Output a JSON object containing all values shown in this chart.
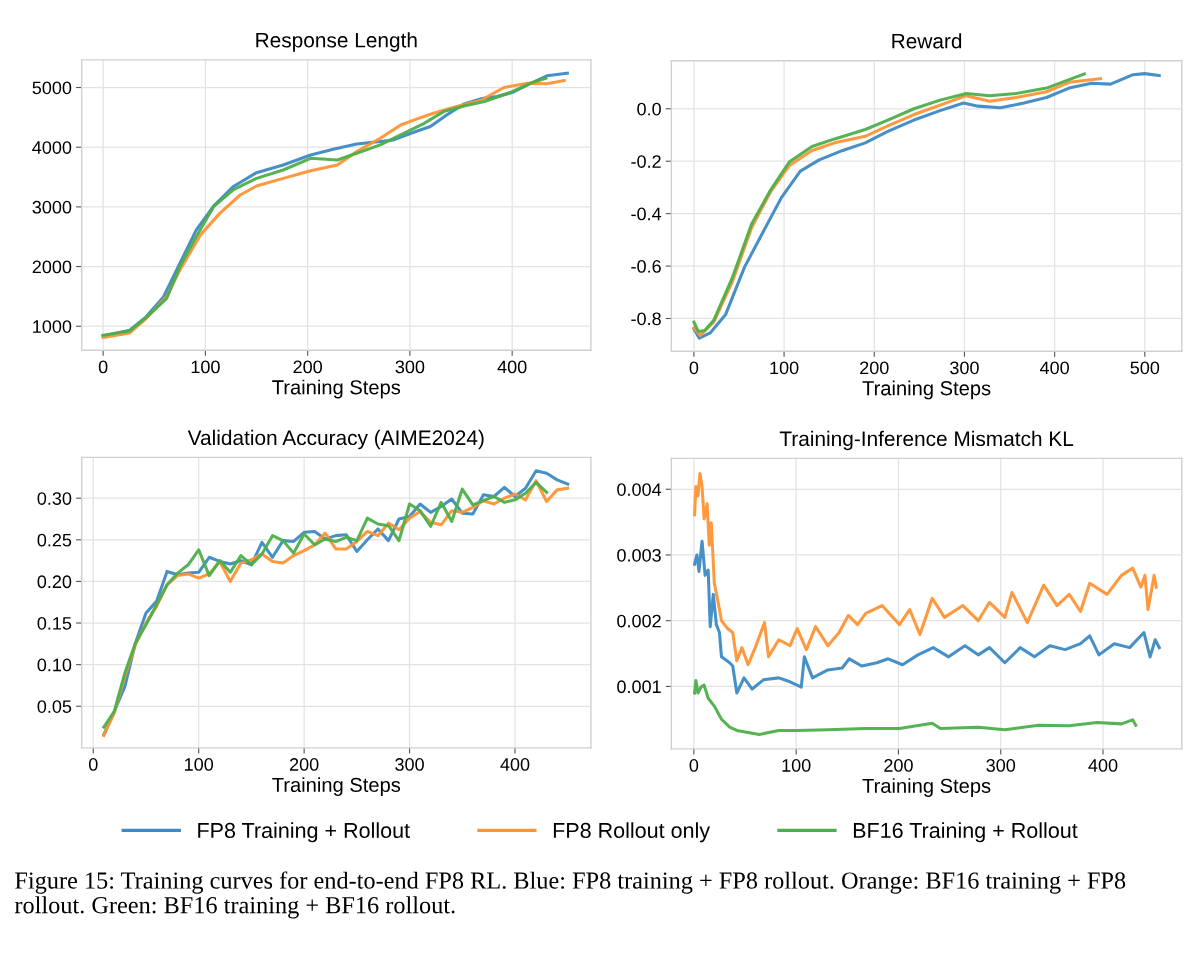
{
  "chart_data": [
    {
      "type": "line",
      "title": "Response Length",
      "xlabel": "Training Steps",
      "xlim": [
        -21,
        477
      ],
      "ylim": [
        597,
        5464
      ],
      "xticks": [
        0,
        100,
        200,
        300,
        400
      ],
      "yticks": [
        1000,
        2000,
        3000,
        4000,
        5000
      ],
      "grid": true,
      "legend": "bottom",
      "line_style": "solid",
      "series": [
        {
          "name": "FP8 Training + Rollout",
          "color": "#3d8ac4",
          "x": [
            0,
            26,
            42,
            59,
            75,
            91,
            108,
            127,
            150,
            176,
            203,
            225,
            248,
            271,
            284,
            301,
            320,
            336,
            353,
            369,
            385,
            400,
            415,
            434,
            454
          ],
          "values": [
            838,
            933,
            1157,
            1492,
            2052,
            2611,
            3014,
            3338,
            3573,
            3702,
            3870,
            3965,
            4055,
            4094,
            4122,
            4234,
            4346,
            4541,
            4726,
            4810,
            4849,
            4916,
            5045,
            5196,
            5240
          ]
        },
        {
          "name": "FP8 Rollout only",
          "color": "#ff9436",
          "x": [
            0,
            26,
            42,
            62,
            75,
            95,
            114,
            134,
            150,
            176,
            203,
            229,
            248,
            271,
            291,
            307,
            323,
            343,
            369,
            392,
            415,
            434,
            451
          ],
          "values": [
            810,
            888,
            1129,
            1492,
            1940,
            2527,
            2891,
            3199,
            3350,
            3478,
            3607,
            3702,
            3926,
            4150,
            4373,
            4474,
            4569,
            4670,
            4782,
            5000,
            5073,
            5062,
            5118
          ]
        },
        {
          "name": "BF16 Training + Rollout",
          "color": "#4daf4a",
          "x": [
            0,
            26,
            42,
            62,
            75,
            91,
            108,
            127,
            150,
            176,
            203,
            229,
            248,
            271,
            291,
            314,
            333,
            353,
            373,
            398,
            418,
            433
          ],
          "values": [
            849,
            922,
            1145,
            1464,
            1996,
            2499,
            3003,
            3283,
            3478,
            3618,
            3814,
            3786,
            3898,
            4038,
            4206,
            4401,
            4597,
            4692,
            4765,
            4916,
            5073,
            5157
          ]
        }
      ]
    },
    {
      "type": "line",
      "title": "Reward",
      "xlabel": "Training Steps",
      "xlim": [
        -25,
        541
      ],
      "ylim": [
        -0.925,
        0.183
      ],
      "xticks": [
        0,
        100,
        200,
        300,
        400,
        500
      ],
      "yticks": [
        -0.8,
        -0.6,
        -0.4,
        -0.2,
        {
          "value": 0.0,
          "label": "0.0"
        }
      ],
      "grid": true,
      "line_style": "solid",
      "series": [
        {
          "color": "#3d8ac4",
          "x": [
            0,
            6,
            18,
            35,
            56,
            77,
            97,
            118,
            139,
            165,
            190,
            215,
            244,
            273,
            299,
            315,
            340,
            366,
            391,
            416,
            441,
            462,
            487,
            500,
            516
          ],
          "values": [
            -0.84,
            -0.875,
            -0.855,
            -0.786,
            -0.605,
            -0.468,
            -0.339,
            -0.238,
            -0.195,
            -0.159,
            -0.13,
            -0.086,
            -0.043,
            -0.007,
            0.022,
            0.01,
            0.004,
            0.022,
            0.043,
            0.079,
            0.097,
            0.094,
            0.13,
            0.134,
            0.127
          ]
        },
        {
          "color": "#ff9436",
          "x": [
            0,
            7,
            22,
            43,
            64,
            85,
            106,
            131,
            156,
            190,
            215,
            244,
            273,
            302,
            328,
            357,
            391,
            416,
            451
          ],
          "values": [
            -0.836,
            -0.865,
            -0.814,
            -0.656,
            -0.454,
            -0.317,
            -0.216,
            -0.159,
            -0.13,
            -0.105,
            -0.065,
            -0.022,
            0.014,
            0.05,
            0.029,
            0.043,
            0.065,
            0.101,
            0.115
          ]
        },
        {
          "color": "#4daf4a",
          "x": [
            0,
            5,
            12,
            22,
            43,
            64,
            85,
            106,
            131,
            156,
            190,
            215,
            244,
            273,
            302,
            328,
            357,
            391,
            416,
            433
          ],
          "values": [
            -0.814,
            -0.85,
            -0.846,
            -0.807,
            -0.641,
            -0.44,
            -0.31,
            -0.202,
            -0.144,
            -0.115,
            -0.079,
            -0.043,
            0.0,
            0.033,
            0.058,
            0.05,
            0.058,
            0.079,
            0.111,
            0.133
          ]
        }
      ]
    },
    {
      "type": "line",
      "title": "Validation Accuracy (AIME2024)",
      "xlabel": "Training Steps",
      "xlim": [
        -11,
        472
      ],
      "ylim": [
        0.0,
        0.349
      ],
      "xticks": [
        0,
        100,
        200,
        300,
        400
      ],
      "yticks": [
        {
          "value": 0.05,
          "label": "0.05"
        },
        {
          "value": 0.1,
          "label": "0.10"
        },
        {
          "value": 0.15,
          "label": "0.15"
        },
        {
          "value": 0.2,
          "label": "0.20"
        },
        {
          "value": 0.25,
          "label": "0.25"
        },
        {
          "value": 0.3,
          "label": "0.30"
        }
      ],
      "grid": true,
      "line_style": "solid",
      "series": [
        {
          "color": "#3d8ac4",
          "x": [
            10,
            20,
            30,
            40,
            50,
            60,
            70,
            80,
            90,
            100,
            110,
            120,
            130,
            140,
            150,
            160,
            170,
            180,
            190,
            200,
            210,
            220,
            230,
            240,
            250,
            260,
            270,
            280,
            290,
            300,
            310,
            320,
            330,
            340,
            350,
            360,
            370,
            380,
            390,
            400,
            410,
            420,
            430,
            440,
            450
          ],
          "values": [
            0.016,
            0.044,
            0.074,
            0.126,
            0.162,
            0.176,
            0.212,
            0.208,
            0.21,
            0.211,
            0.229,
            0.224,
            0.221,
            0.225,
            0.22,
            0.247,
            0.229,
            0.249,
            0.248,
            0.259,
            0.26,
            0.251,
            0.255,
            0.256,
            0.236,
            0.25,
            0.263,
            0.249,
            0.275,
            0.278,
            0.293,
            0.283,
            0.29,
            0.299,
            0.282,
            0.281,
            0.304,
            0.302,
            0.313,
            0.302,
            0.312,
            0.333,
            0.33,
            0.322,
            0.317
          ]
        },
        {
          "color": "#ff9436",
          "x": [
            10,
            20,
            30,
            40,
            50,
            60,
            70,
            80,
            90,
            100,
            110,
            120,
            130,
            140,
            150,
            160,
            170,
            180,
            190,
            200,
            210,
            220,
            230,
            240,
            250,
            260,
            270,
            280,
            290,
            300,
            310,
            320,
            330,
            340,
            350,
            360,
            370,
            380,
            390,
            400,
            410,
            420,
            430,
            440,
            450
          ],
          "values": [
            0.015,
            0.042,
            0.086,
            0.124,
            0.15,
            0.17,
            0.196,
            0.207,
            0.209,
            0.204,
            0.209,
            0.224,
            0.2,
            0.222,
            0.226,
            0.233,
            0.224,
            0.222,
            0.231,
            0.237,
            0.244,
            0.258,
            0.239,
            0.239,
            0.248,
            0.26,
            0.255,
            0.27,
            0.262,
            0.276,
            0.284,
            0.271,
            0.268,
            0.285,
            0.283,
            0.289,
            0.297,
            0.293,
            0.3,
            0.305,
            0.298,
            0.321,
            0.296,
            0.31,
            0.312
          ]
        },
        {
          "color": "#4daf4a",
          "x": [
            10,
            20,
            30,
            40,
            50,
            60,
            70,
            80,
            90,
            100,
            110,
            120,
            130,
            140,
            150,
            160,
            170,
            180,
            190,
            200,
            210,
            220,
            230,
            240,
            250,
            260,
            270,
            280,
            290,
            300,
            310,
            320,
            330,
            340,
            350,
            360,
            370,
            380,
            390,
            400,
            410,
            420,
            430
          ],
          "values": [
            0.025,
            0.044,
            0.09,
            0.126,
            0.148,
            0.172,
            0.196,
            0.21,
            0.22,
            0.238,
            0.207,
            0.225,
            0.211,
            0.231,
            0.22,
            0.233,
            0.255,
            0.249,
            0.234,
            0.257,
            0.244,
            0.251,
            0.248,
            0.253,
            0.249,
            0.276,
            0.269,
            0.267,
            0.249,
            0.293,
            0.285,
            0.266,
            0.295,
            0.272,
            0.311,
            0.292,
            0.297,
            0.302,
            0.295,
            0.298,
            0.306,
            0.319,
            0.307
          ]
        }
      ]
    },
    {
      "type": "line",
      "title": "Training-Inference Mismatch KL",
      "xlabel": "Training Steps",
      "xlim": [
        -22,
        477
      ],
      "ylim": [
        5e-05,
        0.00447
      ],
      "xticks": [
        0,
        100,
        200,
        300,
        400
      ],
      "yticks": [
        0.001,
        0.002,
        0.003,
        0.004
      ],
      "grid": true,
      "line_style": "solid",
      "annotations": [
        "Figure 15: Training curves for end-to-end FP8 RL. Blue: FP8 training + FP8 rollout. Orange: BF16 training + FP8 rollout. Green: BF16 training + BF16 rollout."
      ],
      "series": [
        {
          "color": "#3d8ac4",
          "x": [
            0.7,
            3,
            5,
            8,
            11,
            14,
            16,
            19,
            22,
            25,
            27,
            35,
            38,
            42,
            49,
            57,
            68,
            83,
            94,
            105,
            108,
            116,
            131,
            145,
            152,
            164,
            179,
            190,
            204,
            219,
            234,
            249,
            265,
            278,
            289,
            304,
            319,
            333,
            348,
            363,
            378,
            387,
            396,
            411,
            426,
            440,
            446,
            451,
            455
          ],
          "values": [
            0.00286,
            0.003,
            0.00275,
            0.00321,
            0.00269,
            0.00277,
            0.00191,
            0.0024,
            0.00194,
            0.00182,
            0.00145,
            0.00136,
            0.00131,
            0.0009,
            0.00113,
            0.00096,
            0.0011,
            0.00113,
            0.00107,
            0.00099,
            0.00145,
            0.00113,
            0.00125,
            0.00128,
            0.00142,
            0.00131,
            0.00136,
            0.00142,
            0.00133,
            0.00148,
            0.00159,
            0.00145,
            0.00162,
            0.00148,
            0.00159,
            0.00136,
            0.00159,
            0.00145,
            0.00162,
            0.00156,
            0.00165,
            0.00177,
            0.00148,
            0.00165,
            0.00159,
            0.00182,
            0.00145,
            0.00171,
            0.00159
          ]
        },
        {
          "color": "#ff9436",
          "x": [
            0.7,
            2,
            4,
            6,
            8,
            10,
            13,
            15,
            17,
            20,
            23,
            27,
            33,
            38,
            42,
            47,
            53,
            60,
            69,
            73,
            83,
            94,
            101,
            110,
            119,
            131,
            142,
            151,
            160,
            168,
            184,
            201,
            211,
            221,
            233,
            245,
            263,
            278,
            289,
            304,
            311,
            326,
            342,
            355,
            367,
            378,
            387,
            404,
            418,
            429,
            437,
            441,
            444,
            450,
            452
          ],
          "values": [
            0.00361,
            0.00404,
            0.0039,
            0.00424,
            0.00404,
            0.00355,
            0.00378,
            0.00315,
            0.00349,
            0.00257,
            0.00234,
            0.002,
            0.00188,
            0.00182,
            0.00139,
            0.00159,
            0.00133,
            0.00159,
            0.00197,
            0.00145,
            0.00171,
            0.00162,
            0.00188,
            0.00156,
            0.00191,
            0.00162,
            0.00182,
            0.00208,
            0.00194,
            0.00211,
            0.00223,
            0.00194,
            0.00217,
            0.00179,
            0.00234,
            0.00205,
            0.00223,
            0.002,
            0.00228,
            0.00205,
            0.00243,
            0.00197,
            0.00254,
            0.00223,
            0.0024,
            0.00214,
            0.00257,
            0.0024,
            0.00269,
            0.0028,
            0.00251,
            0.00269,
            0.00217,
            0.00269,
            0.00251
          ]
        },
        {
          "color": "#4daf4a",
          "x": [
            0.7,
            2,
            4,
            7,
            10,
            14,
            20,
            27,
            35,
            42,
            53,
            64,
            83,
            101,
            131,
            168,
            201,
            233,
            241,
            278,
            304,
            337,
            367,
            394,
            418,
            429,
            432
          ],
          "values": [
            0.0009,
            0.00109,
            0.0009,
            0.00099,
            0.00102,
            0.00082,
            0.0007,
            0.0005,
            0.00038,
            0.00033,
            0.0003,
            0.00027,
            0.00033,
            0.00033,
            0.00034,
            0.00036,
            0.00036,
            0.00044,
            0.00036,
            0.00038,
            0.00034,
            0.00041,
            0.0004,
            0.00045,
            0.00043,
            0.00049,
            0.00041
          ]
        }
      ]
    }
  ]
}
